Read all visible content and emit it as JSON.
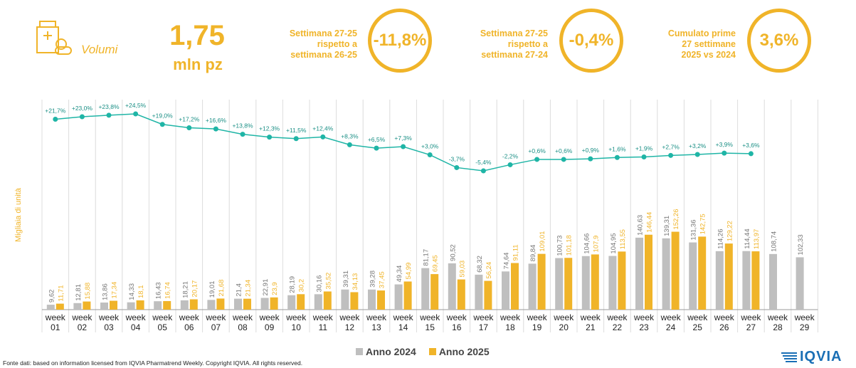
{
  "header": {
    "volumi_label": "Volumi",
    "big_number": "1,75",
    "big_unit": "mln pz",
    "kpis": [
      {
        "label_lines": [
          "Settimana 27-25",
          "rispetto a",
          "settimana 26-25"
        ],
        "value": "-11,8%"
      },
      {
        "label_lines": [
          "Settimana 27-25",
          "rispetto a",
          "settimana 27-24"
        ],
        "value": "-0,4%"
      },
      {
        "label_lines": [
          "Cumulato prime",
          "27 settimane",
          "2025 vs 2024"
        ],
        "value": "3,6%"
      }
    ]
  },
  "colors": {
    "accent": "#f0b429",
    "series_2024": "#bfbfbf",
    "series_2025": "#f0b429",
    "growth_line": "#1fb5a6",
    "logo": "#1a6fb5"
  },
  "chart_data": {
    "type": "bar",
    "ylabel": "Migliaia di unità",
    "categories": [
      [
        "week",
        "01"
      ],
      [
        "week",
        "02"
      ],
      [
        "week",
        "03"
      ],
      [
        "week",
        "04"
      ],
      [
        "week",
        "05"
      ],
      [
        "week",
        "06"
      ],
      [
        "week",
        "07"
      ],
      [
        "week",
        "08"
      ],
      [
        "week",
        "09"
      ],
      [
        "week",
        "10"
      ],
      [
        "week",
        "11"
      ],
      [
        "week",
        "12"
      ],
      [
        "week",
        "13"
      ],
      [
        "week",
        "14"
      ],
      [
        "week",
        "15"
      ],
      [
        "week",
        "16"
      ],
      [
        "week",
        "17"
      ],
      [
        "week",
        "18"
      ],
      [
        "week",
        "19"
      ],
      [
        "week",
        "20"
      ],
      [
        "week",
        "21"
      ],
      [
        "week",
        "22"
      ],
      [
        "week",
        "23"
      ],
      [
        "week",
        "24"
      ],
      [
        "week",
        "25"
      ],
      [
        "week",
        "26"
      ],
      [
        "week",
        "27"
      ],
      [
        "week",
        "28"
      ],
      [
        "week",
        "29"
      ]
    ],
    "series": [
      {
        "name": "Anno 2024",
        "values": [
          9.62,
          12.81,
          13.86,
          14.33,
          16.43,
          18.21,
          19.01,
          21.4,
          22.91,
          28.19,
          30.16,
          39.31,
          39.28,
          49.34,
          81.17,
          90.52,
          68.32,
          74.64,
          89.84,
          100.73,
          104.66,
          104.95,
          140.63,
          139.31,
          131.36,
          114.26,
          114.44,
          108.74,
          102.33
        ],
        "labels": [
          "9,62",
          "12,81",
          "13,86",
          "14,33",
          "16,43",
          "18,21",
          "19,01",
          "21,4",
          "22,91",
          "28,19",
          "30,16",
          "39,31",
          "39,28",
          "49,34",
          "81,17",
          "90,52",
          "68,32",
          "74,64",
          "89,84",
          "100,73",
          "104,66",
          "104,95",
          "140,63",
          "139,31",
          "131,36",
          "114,26",
          "114,44",
          "108,74",
          "102,33"
        ]
      },
      {
        "name": "Anno 2025",
        "values": [
          11.71,
          15.88,
          17.34,
          18.1,
          16.74,
          20.17,
          21.68,
          21.34,
          23.9,
          30.2,
          35.52,
          34.13,
          37.45,
          54.99,
          69.45,
          59.03,
          56.24,
          91.11,
          109.01,
          101.18,
          107.9,
          113.55,
          146.44,
          152.26,
          142.75,
          129.22,
          113.97,
          null,
          null
        ],
        "labels": [
          "11,71",
          "15,88",
          "17,34",
          "18,1",
          "16,74",
          "20,17",
          "21,68",
          "21,34",
          "23,9",
          "30,2",
          "35,52",
          "34,13",
          "37,45",
          "54,99",
          "69,45",
          "59,03",
          "56,24",
          "91,11",
          "109,01",
          "101,18",
          "107,9",
          "113,55",
          "146,44",
          "152,26",
          "142,75",
          "129,22",
          "113,97",
          "",
          ""
        ]
      }
    ],
    "growth": {
      "values": [
        21.7,
        23.0,
        23.8,
        24.5,
        19.0,
        17.2,
        16.6,
        13.8,
        12.3,
        11.5,
        12.4,
        8.3,
        6.5,
        7.3,
        3.0,
        -3.7,
        -5.4,
        -2.2,
        0.6,
        0.6,
        0.9,
        1.6,
        1.9,
        2.7,
        3.2,
        3.9,
        3.6
      ],
      "labels": [
        "+21,7%",
        "+23,0%",
        "+23,8%",
        "+24,5%",
        "+19,0%",
        "+17,2%",
        "+16,6%",
        "+13,8%",
        "+12,3%",
        "+11,5%",
        "+12,4%",
        "+8,3%",
        "+6,5%",
        "+7,3%",
        "+3,0%",
        "-3,7%",
        "-5,4%",
        "-2,2%",
        "+0,6%",
        "+0,6%",
        "+0,9%",
        "+1,6%",
        "+1,9%",
        "+2,7%",
        "+3,2%",
        "+3,9%",
        "+3,6%"
      ]
    },
    "legend_position": "bottom"
  },
  "footer": {
    "source": "Fonte dati: based on information licensed from IQVIA Pharmatrend Weekly. Copyright IQVIA. All rights reserved.",
    "logo_text": "IQVIA"
  }
}
